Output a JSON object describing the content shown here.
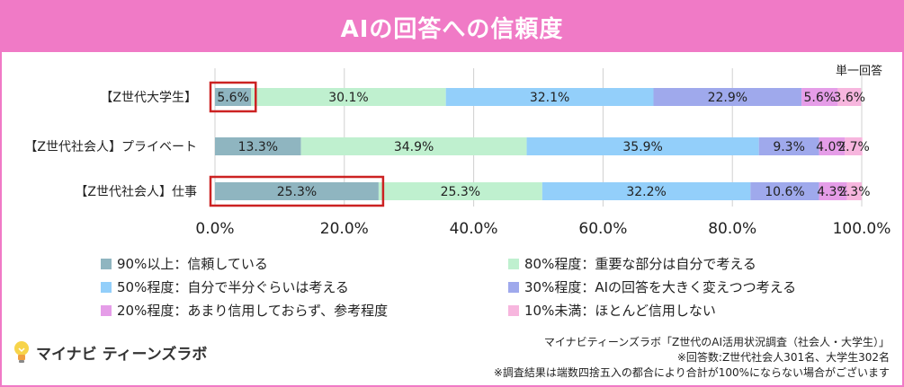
{
  "header": {
    "title": "AIの回答への信頼度"
  },
  "unit_label": "単一回答",
  "chart_data": {
    "type": "bar",
    "orientation": "horizontal",
    "stacked": true,
    "title": "AIの回答への信頼度",
    "categories": [
      "【Z世代大学生】",
      "【Z世代社会人】プライベート",
      "【Z世代社会人】仕事"
    ],
    "series": [
      {
        "name": "90%以上：信頼している",
        "color": "#8fb5c0",
        "values": [
          5.6,
          13.3,
          25.3
        ],
        "labels": [
          "5.6%",
          "13.3%",
          "25.3%"
        ]
      },
      {
        "name": "80%程度：重要な部分は自分で考える",
        "color": "#bff0cf",
        "values": [
          30.1,
          34.9,
          25.3
        ],
        "labels": [
          "30.1%",
          "34.9%",
          "25.3%"
        ]
      },
      {
        "name": "50%程度：自分で半分ぐらいは考える",
        "color": "#93cffa",
        "values": [
          32.1,
          35.9,
          32.2
        ],
        "labels": [
          "32.1%",
          "35.9%",
          "32.2%"
        ]
      },
      {
        "name": "30%程度：AIの回答を大きく変えつつ考える",
        "color": "#9fa9ec",
        "values": [
          22.9,
          9.3,
          10.6
        ],
        "labels": [
          "22.9%",
          "9.3%",
          "10.6%"
        ]
      },
      {
        "name": "20%程度：あまり信用しておらず、参考程度",
        "color": "#e59de8",
        "values": [
          5.6,
          4.0,
          4.3
        ],
        "labels": [
          "5.6%",
          "4.0%",
          "4.3%"
        ]
      },
      {
        "name": "10%未満：ほとんど信用しない",
        "color": "#f7b6de",
        "values": [
          3.6,
          2.7,
          2.3
        ],
        "labels": [
          "3.6%",
          "2.7%",
          "2.3%"
        ]
      }
    ],
    "xlim": [
      0,
      100
    ],
    "xticks": [
      "0.0%",
      "20.0%",
      "40.0%",
      "60.0%",
      "80.0%",
      "100.0%"
    ],
    "grid": true,
    "highlighted": [
      {
        "category": "【Z世代大学生】",
        "series": "90%以上：信頼している",
        "color": "#cc2222"
      },
      {
        "category": "【Z世代社会人】仕事",
        "series": "90%以上：信頼している",
        "color": "#cc2222"
      }
    ],
    "legend_position": "bottom"
  },
  "footer": {
    "logo_text": "マイナビ ティーンズラボ",
    "source": "マイナビティーンズラボ「Z世代のAI活用状況調査（社会人・大学生）」",
    "sample": "※回答数:Z世代社会人301名、大学生302名",
    "disclaimer": "※調査結果は端数四捨五入の都合により合計が100%にならない場合がございます"
  }
}
